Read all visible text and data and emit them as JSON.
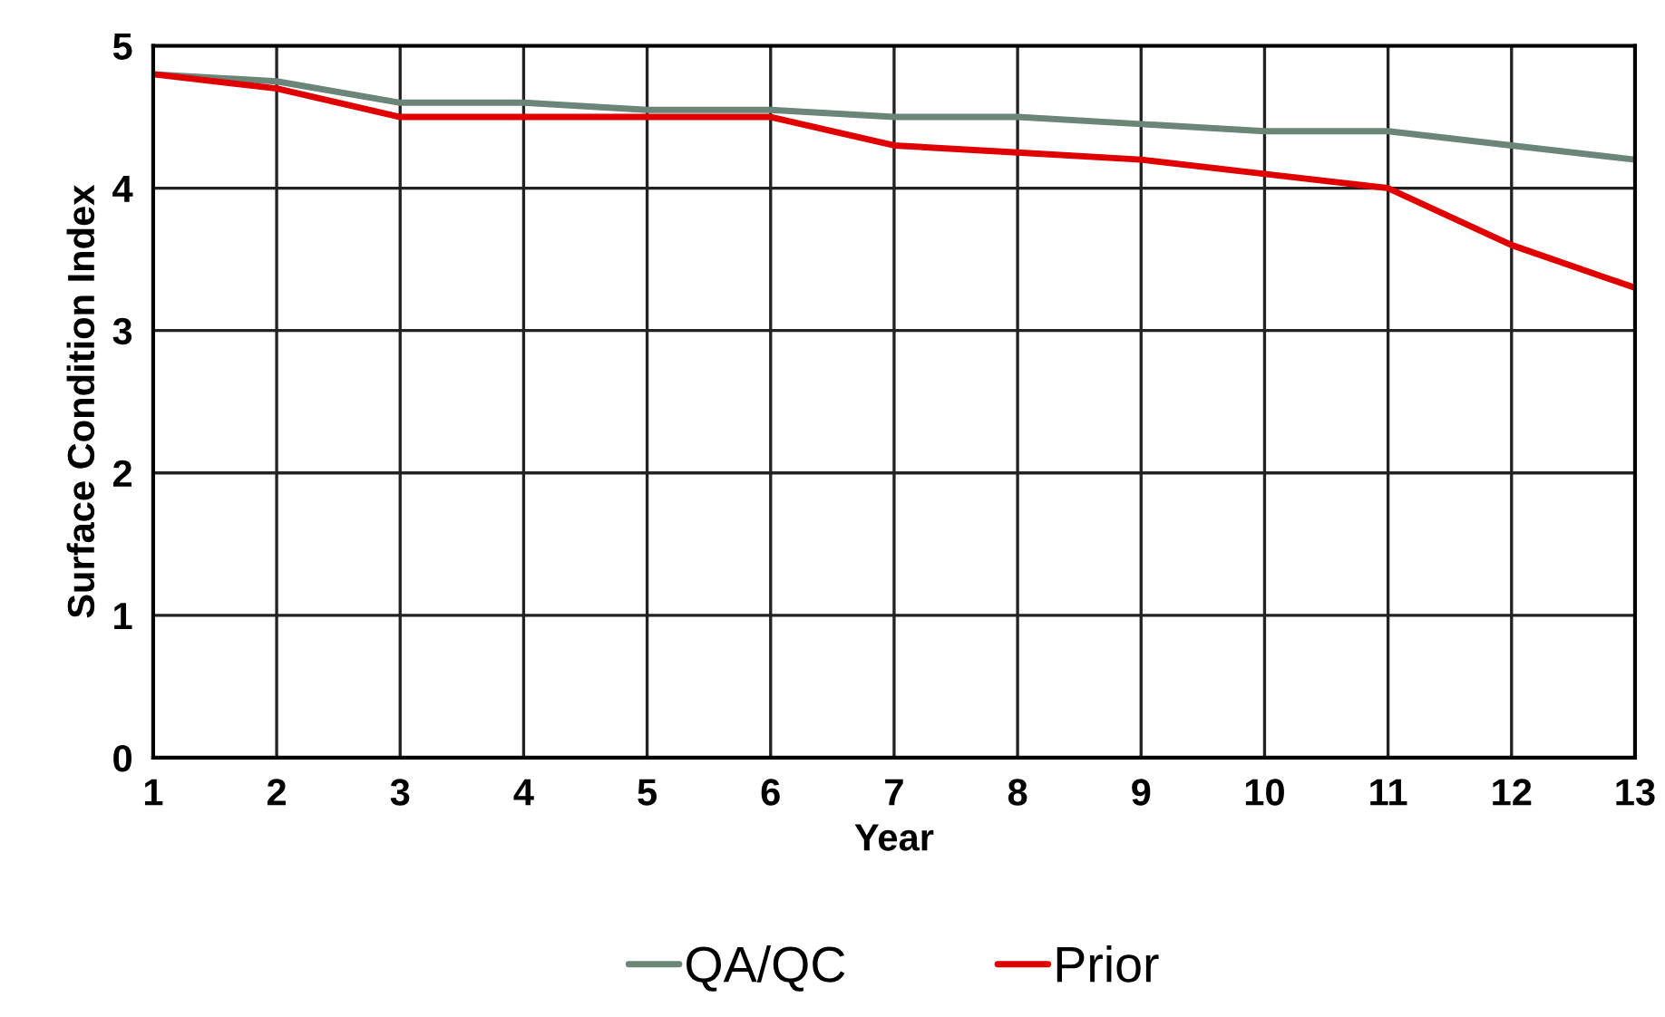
{
  "chart_data": {
    "type": "line",
    "xlabel": "Year",
    "ylabel": "Surface Condition Index",
    "x": [
      1,
      2,
      3,
      4,
      5,
      6,
      7,
      8,
      9,
      10,
      11,
      12,
      13
    ],
    "series": [
      {
        "name": "QA/QC",
        "color": "#6b8578",
        "values": [
          4.8,
          4.75,
          4.6,
          4.6,
          4.55,
          4.55,
          4.5,
          4.5,
          4.45,
          4.4,
          4.4,
          4.3,
          4.2
        ]
      },
      {
        "name": "Prior",
        "color": "#e00000",
        "values": [
          4.8,
          4.7,
          4.5,
          4.5,
          4.5,
          4.5,
          4.3,
          4.25,
          4.2,
          4.1,
          4.0,
          3.6,
          3.3
        ]
      }
    ],
    "xlim": [
      1,
      13
    ],
    "xticks": [
      1,
      2,
      3,
      4,
      5,
      6,
      7,
      8,
      9,
      10,
      11,
      12,
      13
    ],
    "ylim": [
      0,
      5
    ],
    "yticks": [
      0,
      1,
      2,
      3,
      4,
      5
    ],
    "grid": true,
    "legend": "bottom",
    "marker": "none",
    "line_style": "solid"
  }
}
